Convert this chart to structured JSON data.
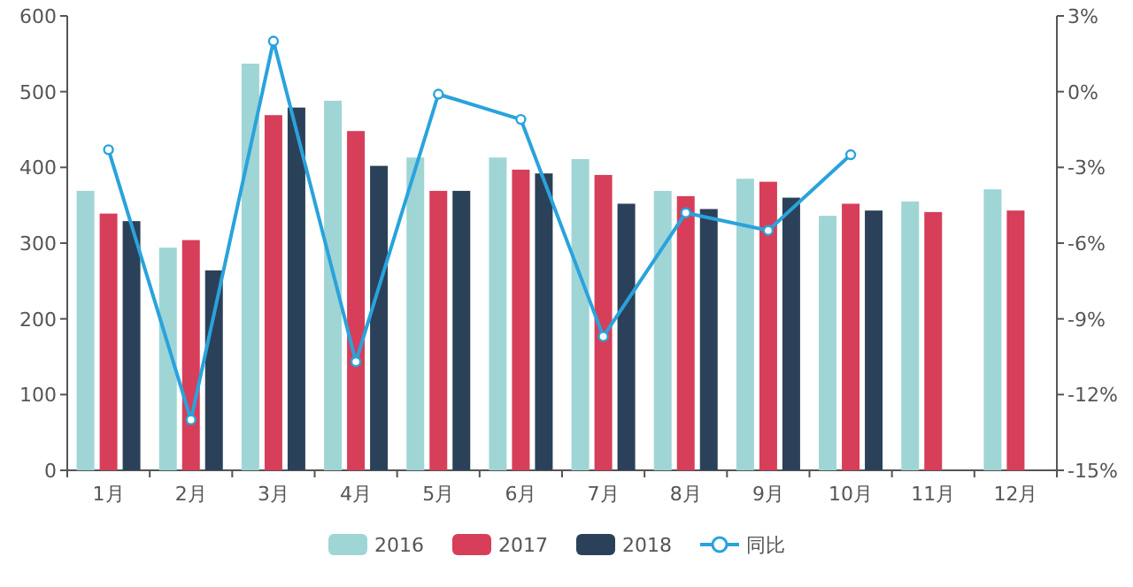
{
  "chart_data": {
    "type": "bar",
    "categories": [
      "1月",
      "2月",
      "3月",
      "4月",
      "5月",
      "6月",
      "7月",
      "8月",
      "9月",
      "10月",
      "11月",
      "12月"
    ],
    "series": [
      {
        "name": "2016",
        "color": "#a0d5d6",
        "values": [
          369,
          294,
          537,
          488,
          413,
          413,
          411,
          369,
          385,
          336,
          355,
          371
        ]
      },
      {
        "name": "2017",
        "color": "#d63e5a",
        "values": [
          339,
          304,
          469,
          448,
          369,
          397,
          390,
          362,
          381,
          352,
          341,
          343
        ]
      },
      {
        "name": "2018",
        "color": "#2b4159",
        "values": [
          329,
          264,
          479,
          402,
          369,
          392,
          352,
          345,
          360,
          343,
          null,
          null
        ]
      },
      {
        "name": "同比",
        "type": "line",
        "axis": "y2",
        "color": "#29a3dc",
        "marker": "circle",
        "values": [
          -2.3,
          -13.0,
          2.0,
          -10.7,
          -0.1,
          -1.1,
          -9.7,
          -4.8,
          -5.5,
          -2.5,
          null,
          null
        ]
      }
    ],
    "ylim": [
      0,
      600
    ],
    "yticks": [
      0,
      100,
      200,
      300,
      400,
      500,
      600
    ],
    "y2lim": [
      -15,
      3
    ],
    "y2ticks": [
      {
        "value": 3,
        "label": "3%"
      },
      {
        "value": 0,
        "label": "0%"
      },
      {
        "value": -3,
        "label": "-3%"
      },
      {
        "value": -6,
        "label": "-6%"
      },
      {
        "value": -9,
        "label": "-9%"
      },
      {
        "value": -12,
        "label": "-12%"
      },
      {
        "value": -15,
        "label": "-15%"
      }
    ],
    "legend": "bottom",
    "grid": false
  }
}
